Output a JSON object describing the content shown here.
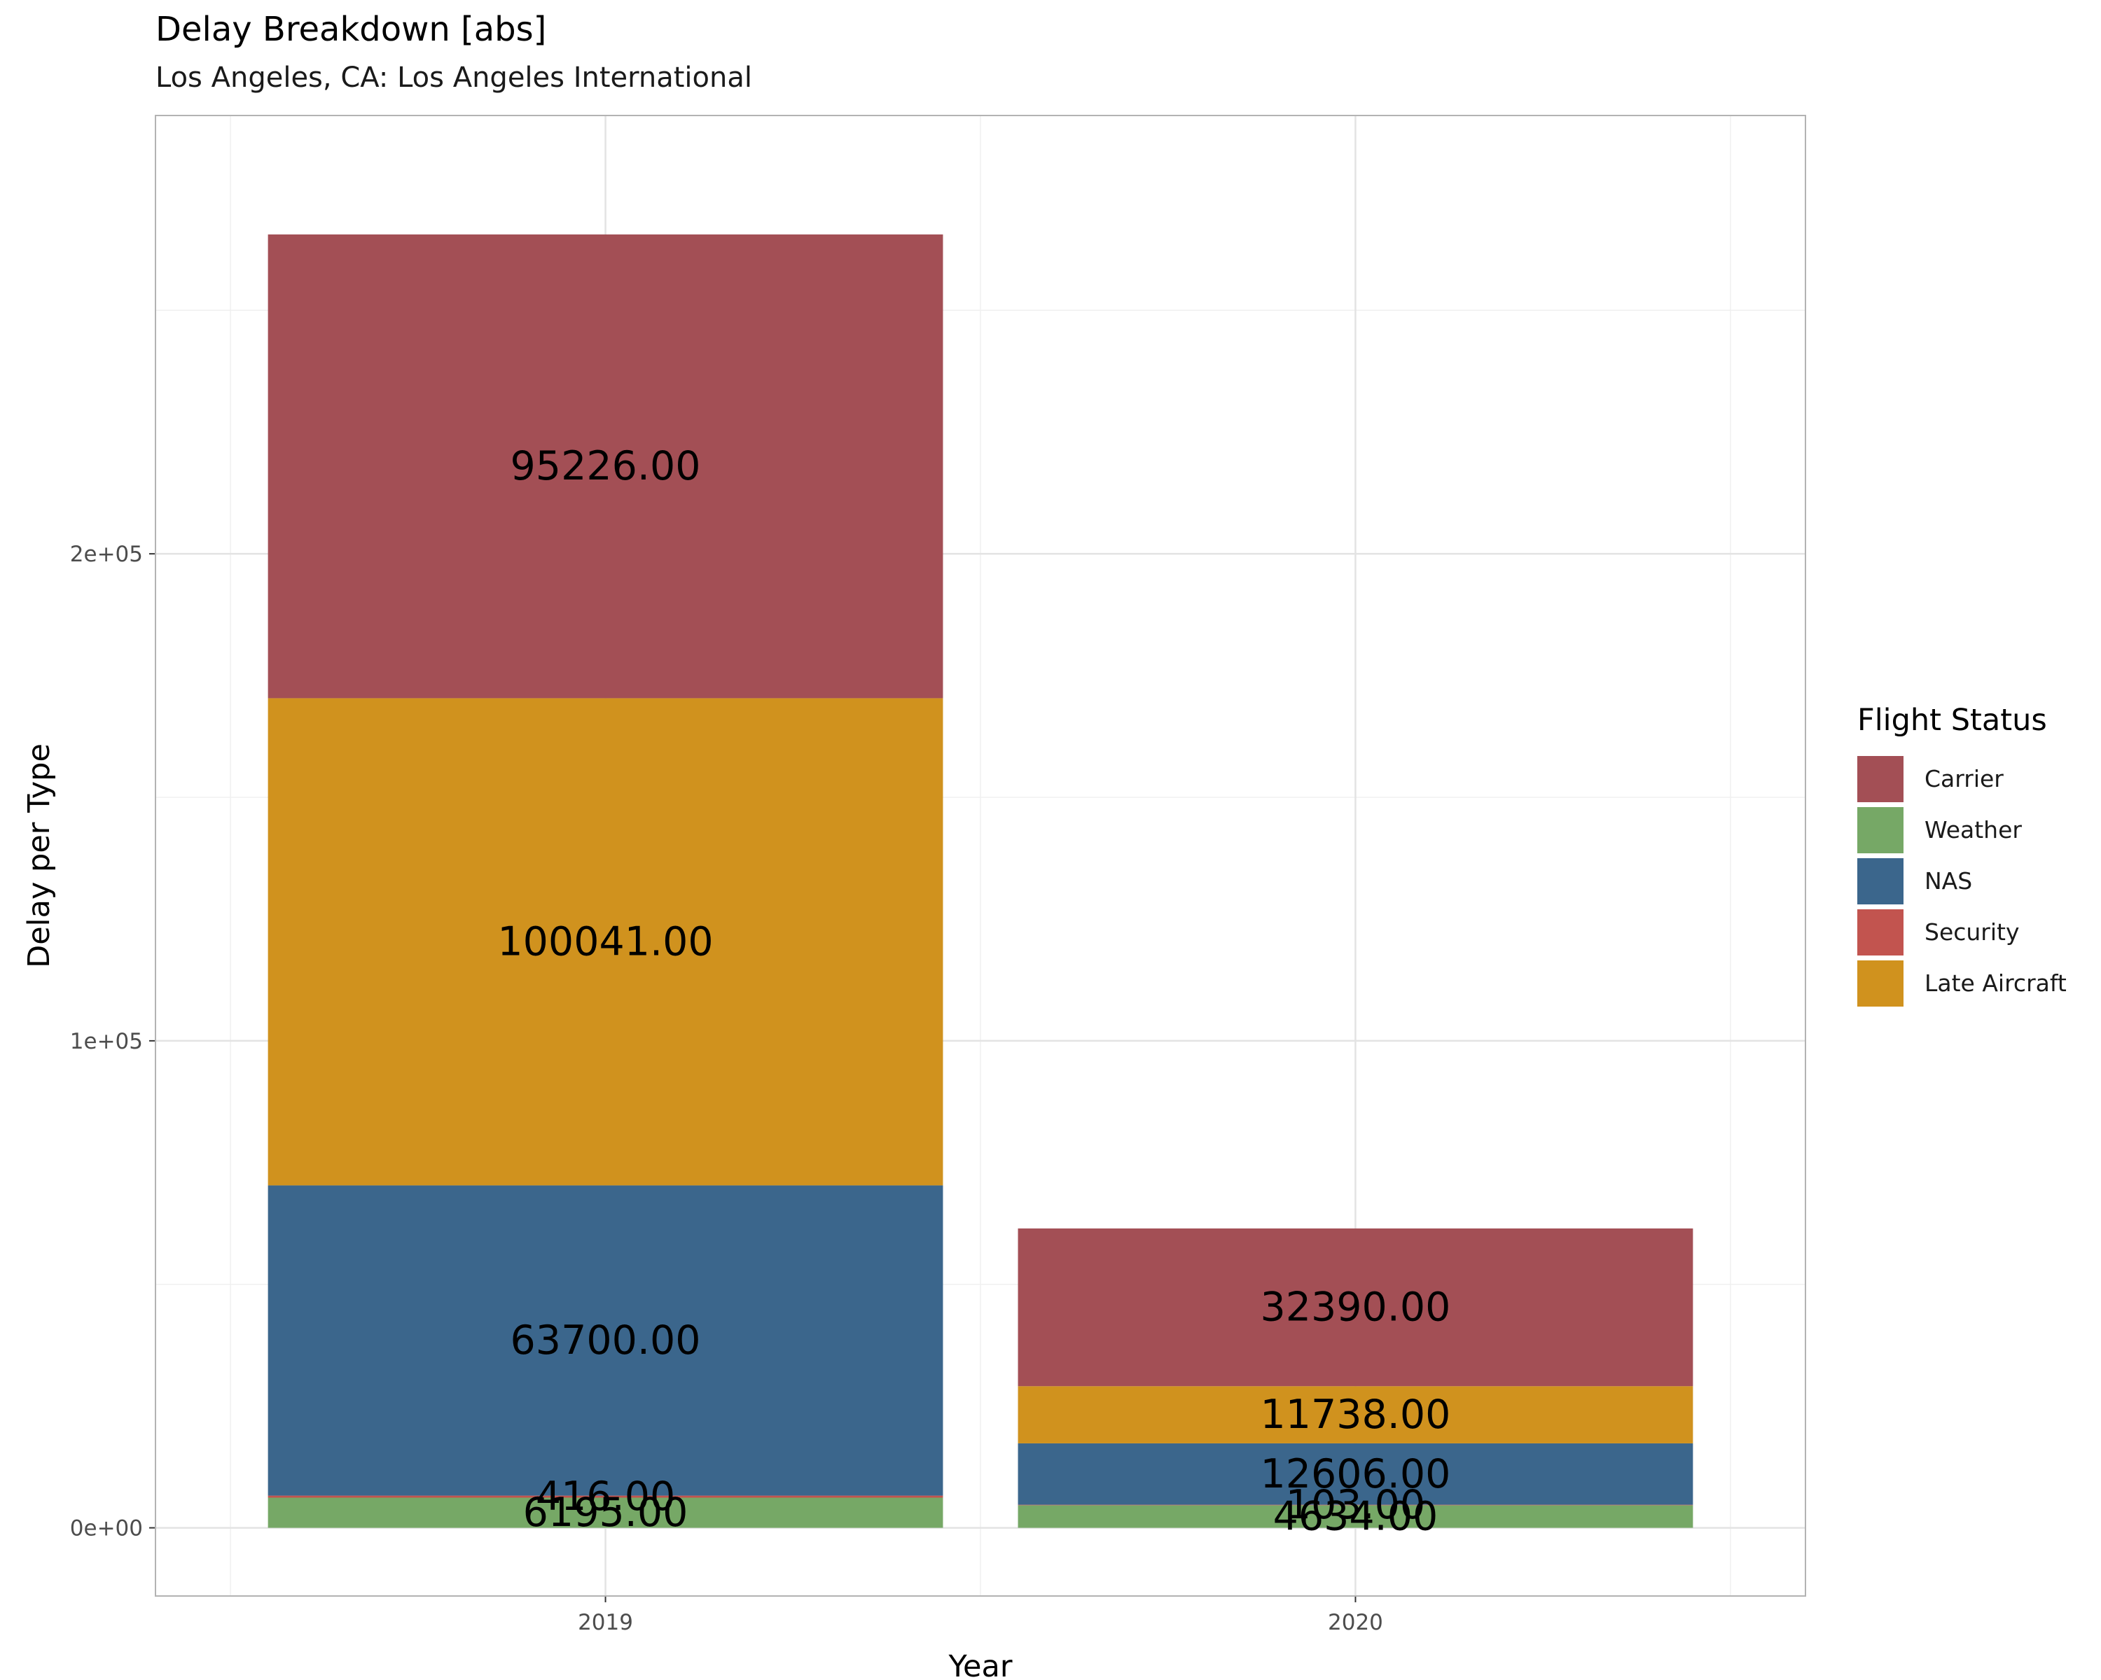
{
  "chart_data": {
    "type": "bar",
    "stacked": true,
    "title": "Delay Breakdown [abs]",
    "subtitle": "Los Angeles, CA: Los Angeles International",
    "xlabel": "Year",
    "ylabel": "Delay per Type",
    "categories": [
      "2019",
      "2020"
    ],
    "ylim": [
      -14000,
      290000
    ],
    "y_ticks": [
      {
        "value": 0,
        "label": "0e+00"
      },
      {
        "value": 100000,
        "label": "1e+05"
      },
      {
        "value": 200000,
        "label": "2e+05"
      }
    ],
    "grid": true,
    "legend_title": "Flight Status",
    "legend_position": "right",
    "series": [
      {
        "name": "Carrier",
        "color": "#A34F55",
        "values": [
          95226,
          32390
        ]
      },
      {
        "name": "Weather",
        "color": "#76A866",
        "values": [
          6195,
          4634
        ]
      },
      {
        "name": "NAS",
        "color": "#3B668C",
        "values": [
          63700,
          12606
        ]
      },
      {
        "name": "Security",
        "color": "#C2544F",
        "values": [
          416,
          103
        ]
      },
      {
        "name": "Late Aircraft",
        "color": "#D0921E",
        "values": [
          100041,
          11738
        ]
      }
    ],
    "stack_order_bottom_to_top": [
      "Weather",
      "Security",
      "NAS",
      "Late Aircraft",
      "Carrier"
    ],
    "data_labels": [
      [
        "95226.00",
        "32390.00"
      ],
      [
        "6195.00",
        "4634.00"
      ],
      [
        "63700.00",
        "12606.00"
      ],
      [
        "416.00",
        "103.00"
      ],
      [
        "100041.00",
        "11738.00"
      ]
    ]
  }
}
